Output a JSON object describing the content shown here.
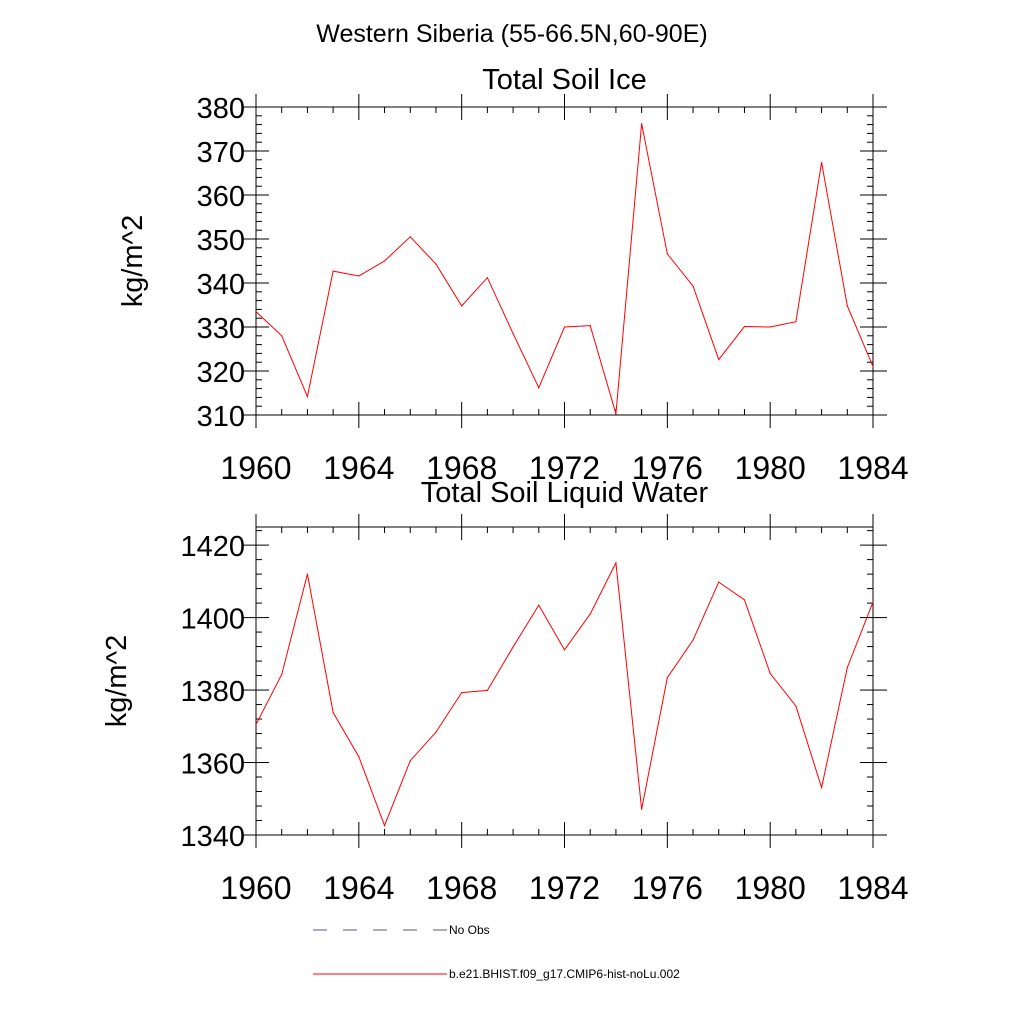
{
  "figure": {
    "suptitle": "Western Siberia (55-66.5N,60-90E)"
  },
  "chart_data": [
    {
      "type": "line",
      "title": "Total Soil Ice",
      "xlabel": "",
      "ylabel": "kg/m^2",
      "xlim": [
        1960,
        1984
      ],
      "ylim": [
        310,
        380
      ],
      "xticks": [
        "1960",
        "1964",
        "1968",
        "1972",
        "1976",
        "1980",
        "1984"
      ],
      "yticks": [
        "310",
        "320",
        "330",
        "340",
        "350",
        "360",
        "370",
        "380"
      ],
      "x": [
        1960,
        1961,
        1962,
        1963,
        1964,
        1965,
        1966,
        1967,
        1968,
        1969,
        1970,
        1971,
        1972,
        1973,
        1974,
        1975,
        1976,
        1977,
        1978,
        1979,
        1980,
        1981,
        1982,
        1983,
        1984
      ],
      "series": [
        {
          "name": "b.e21.BHIST.f09_g17.CMIP6-hist-noLu.002",
          "color": "#ff0000",
          "values": [
            333.5,
            328.0,
            314.2,
            342.7,
            341.6,
            345.0,
            350.5,
            344.3,
            334.8,
            341.2,
            328.5,
            316.2,
            330.0,
            330.3,
            310.3,
            376.2,
            346.6,
            339.3,
            322.6,
            330.1,
            330.0,
            331.2,
            367.4,
            334.8,
            321.0
          ]
        }
      ],
      "grid": false
    },
    {
      "type": "line",
      "title": "Total Soil Liquid Water",
      "xlabel": "",
      "ylabel": "kg/m^2",
      "xlim": [
        1960,
        1984
      ],
      "ylim": [
        1340,
        1425
      ],
      "xticks": [
        "1960",
        "1964",
        "1968",
        "1972",
        "1976",
        "1980",
        "1984"
      ],
      "yticks": [
        "1340",
        "1360",
        "1380",
        "1400",
        "1420"
      ],
      "x": [
        1960,
        1961,
        1962,
        1963,
        1964,
        1965,
        1966,
        1967,
        1968,
        1969,
        1970,
        1971,
        1972,
        1973,
        1974,
        1975,
        1976,
        1977,
        1978,
        1979,
        1980,
        1981,
        1982,
        1983,
        1984
      ],
      "series": [
        {
          "name": "b.e21.BHIST.f09_g17.CMIP6-hist-noLu.002",
          "color": "#ff0000",
          "values": [
            1370.5,
            1384.3,
            1412.0,
            1373.8,
            1361.6,
            1342.6,
            1360.5,
            1368.4,
            1379.3,
            1379.9,
            1391.9,
            1403.4,
            1391.1,
            1401.0,
            1415.1,
            1347.1,
            1383.4,
            1393.8,
            1409.8,
            1404.9,
            1384.6,
            1375.6,
            1353.1,
            1386.2,
            1404.3
          ]
        }
      ],
      "grid": false
    }
  ],
  "legend": {
    "placement": "bottom",
    "items": [
      {
        "label": "No Obs",
        "style": "dashed",
        "color": "#555577"
      },
      {
        "label": "b.e21.BHIST.f09_g17.CMIP6-hist-noLu.002",
        "style": "solid",
        "color": "#ff0000"
      }
    ]
  }
}
